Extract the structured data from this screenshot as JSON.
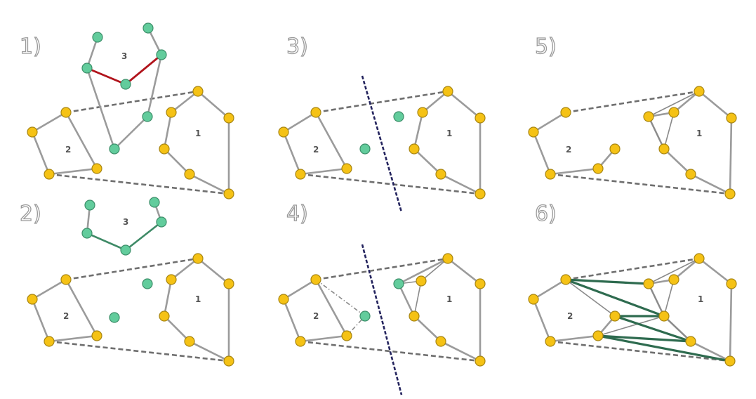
{
  "panels": [
    {
      "id": "p1",
      "label": "1)"
    },
    {
      "id": "p2",
      "label": "2)"
    },
    {
      "id": "p3",
      "label": "3)"
    },
    {
      "id": "p4",
      "label": "4)"
    },
    {
      "id": "p5",
      "label": "5)"
    },
    {
      "id": "p6",
      "label": "6)"
    }
  ],
  "region_labels": {
    "one": "1",
    "two": "2",
    "three": "3"
  },
  "colors": {
    "vertex_yellow": "#f5c215",
    "vertex_green": "#62cc9c",
    "edge_gray": "#9b9b9b",
    "edge_red": "#b1141c",
    "edge_green": "#3e8a66",
    "cut_line": "#24245e"
  }
}
